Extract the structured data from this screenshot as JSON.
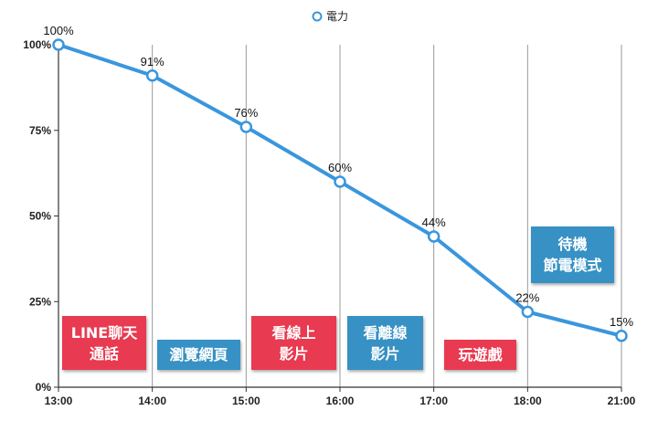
{
  "chart_data": {
    "type": "line",
    "categories": [
      "13:00",
      "14:00",
      "15:00",
      "16:00",
      "17:00",
      "18:00",
      "21:00"
    ],
    "series": [
      {
        "name": "電力",
        "values": [
          100,
          91,
          76,
          60,
          44,
          22,
          15
        ],
        "labels": [
          "100%",
          "91%",
          "76%",
          "60%",
          "44%",
          "22%",
          "15%"
        ]
      }
    ],
    "y_ticks": [
      "0%",
      "25%",
      "50%",
      "75%",
      "100%"
    ],
    "ylim": [
      0,
      100
    ],
    "grid": "vertical",
    "legend": "top-center",
    "colors": {
      "line": "#3a96dd",
      "red": "#e83a50",
      "blue": "#3791c4"
    },
    "annotations": [
      {
        "text": "LINE聊天\n通話",
        "color": "red"
      },
      {
        "text": "瀏覽網頁",
        "color": "blue"
      },
      {
        "text": "看線上\n影片",
        "color": "red"
      },
      {
        "text": "看離線\n影片",
        "color": "blue"
      },
      {
        "text": "玩遊戲",
        "color": "red"
      },
      {
        "text": "待機\n節電模式",
        "color": "blue"
      }
    ]
  }
}
